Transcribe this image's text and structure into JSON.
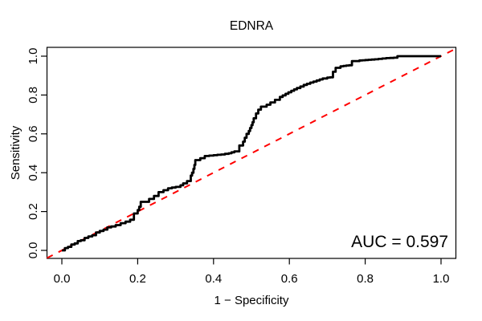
{
  "title": "EDNRA",
  "colors": {
    "background": "#FFFFFF",
    "frame": "#000000",
    "text": "#000000",
    "roc_curve": "#000000",
    "diagonal": "#FF0000"
  },
  "chart_data": {
    "type": "line",
    "title": "EDNRA",
    "xlabel": "1 − Specificity",
    "ylabel": "Sensitivity",
    "xlim": [
      0,
      1
    ],
    "ylim": [
      0,
      1
    ],
    "grid": false,
    "legend_position": "none",
    "x_tick_values": [
      0.0,
      0.2,
      0.4,
      0.6,
      0.8,
      1.0
    ],
    "x_tick_labels": [
      "0.0",
      "0.2",
      "0.4",
      "0.6",
      "0.8",
      "1.0"
    ],
    "y_tick_values": [
      0.0,
      0.2,
      0.4,
      0.6,
      0.8,
      1.0
    ],
    "y_tick_labels": [
      "0.0",
      "0.2",
      "0.4",
      "0.6",
      "0.8",
      "1.0"
    ],
    "annotation": "AUC = 0.597",
    "auc": 0.597,
    "series": [
      {
        "name": "ROC curve",
        "style": "step-solid",
        "color": "#000000",
        "line_width": 2.8,
        "points": [
          [
            0.0,
            0.0
          ],
          [
            0.008,
            0.012
          ],
          [
            0.016,
            0.018
          ],
          [
            0.025,
            0.03
          ],
          [
            0.034,
            0.036
          ],
          [
            0.042,
            0.048
          ],
          [
            0.05,
            0.052
          ],
          [
            0.06,
            0.064
          ],
          [
            0.07,
            0.072
          ],
          [
            0.08,
            0.078
          ],
          [
            0.09,
            0.092
          ],
          [
            0.1,
            0.1
          ],
          [
            0.11,
            0.107
          ],
          [
            0.12,
            0.118
          ],
          [
            0.13,
            0.123
          ],
          [
            0.142,
            0.13
          ],
          [
            0.155,
            0.14
          ],
          [
            0.168,
            0.148
          ],
          [
            0.18,
            0.158
          ],
          [
            0.19,
            0.17
          ],
          [
            0.2,
            0.19
          ],
          [
            0.208,
            0.225
          ],
          [
            0.218,
            0.25
          ],
          [
            0.23,
            0.265
          ],
          [
            0.243,
            0.28
          ],
          [
            0.255,
            0.3
          ],
          [
            0.268,
            0.31
          ],
          [
            0.28,
            0.32
          ],
          [
            0.3,
            0.327
          ],
          [
            0.313,
            0.335
          ],
          [
            0.32,
            0.345
          ],
          [
            0.33,
            0.357
          ],
          [
            0.34,
            0.37
          ],
          [
            0.347,
            0.4
          ],
          [
            0.352,
            0.44
          ],
          [
            0.357,
            0.465
          ],
          [
            0.365,
            0.475
          ],
          [
            0.377,
            0.486
          ],
          [
            0.4,
            0.49
          ],
          [
            0.42,
            0.494
          ],
          [
            0.44,
            0.5
          ],
          [
            0.455,
            0.51
          ],
          [
            0.468,
            0.52
          ],
          [
            0.478,
            0.54
          ],
          [
            0.487,
            0.58
          ],
          [
            0.493,
            0.6
          ],
          [
            0.5,
            0.63
          ],
          [
            0.506,
            0.66
          ],
          [
            0.512,
            0.68
          ],
          [
            0.518,
            0.705
          ],
          [
            0.525,
            0.725
          ],
          [
            0.532,
            0.74
          ],
          [
            0.54,
            0.75
          ],
          [
            0.55,
            0.762
          ],
          [
            0.562,
            0.775
          ],
          [
            0.575,
            0.79
          ],
          [
            0.59,
            0.806
          ],
          [
            0.605,
            0.822
          ],
          [
            0.62,
            0.836
          ],
          [
            0.638,
            0.852
          ],
          [
            0.655,
            0.864
          ],
          [
            0.672,
            0.875
          ],
          [
            0.688,
            0.885
          ],
          [
            0.7,
            0.89
          ],
          [
            0.715,
            0.893
          ],
          [
            0.722,
            0.92
          ],
          [
            0.728,
            0.94
          ],
          [
            0.735,
            0.948
          ],
          [
            0.75,
            0.952
          ],
          [
            0.765,
            0.955
          ],
          [
            0.772,
            0.975
          ],
          [
            0.785,
            0.978
          ],
          [
            0.8,
            0.98
          ],
          [
            0.825,
            0.984
          ],
          [
            0.855,
            0.99
          ],
          [
            0.875,
            0.992
          ],
          [
            0.885,
            1.0
          ],
          [
            1.0,
            1.0
          ]
        ]
      },
      {
        "name": "reference diagonal",
        "style": "dashed",
        "color": "#FF0000",
        "line_width": 2,
        "points": [
          [
            0,
            0
          ],
          [
            1,
            1
          ]
        ]
      }
    ]
  }
}
